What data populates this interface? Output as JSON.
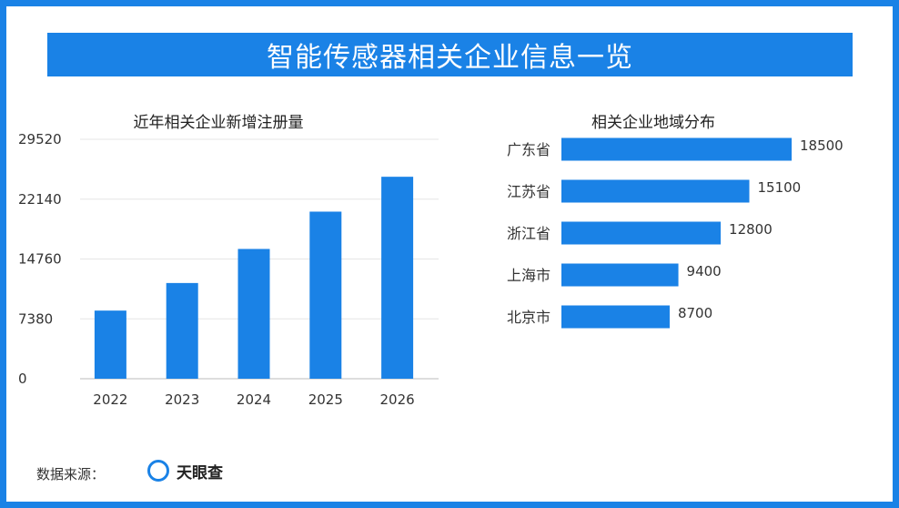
{
  "title": "智能传感器相关企业信息一览",
  "colors": {
    "accent": "#1a82e6",
    "bar": "#1a82e6",
    "text": "#333333",
    "grid": "#e6e6e6"
  },
  "chart_data": [
    {
      "type": "bar",
      "title": "近年相关企业新增注册量",
      "categories": [
        "2022",
        "2023",
        "2024",
        "2025",
        "2026"
      ],
      "values": [
        8400,
        11800,
        16000,
        20600,
        24900
      ],
      "yticks": [
        0,
        7380,
        14760,
        22140,
        29520
      ],
      "ylim": [
        0,
        29520
      ],
      "grid": true
    },
    {
      "type": "bar",
      "orientation": "horizontal",
      "title": "相关企业地域分布",
      "categories": [
        "广东省",
        "江苏省",
        "浙江省",
        "上海市",
        "北京市"
      ],
      "values": [
        18500,
        15100,
        12800,
        9400,
        8700
      ]
    }
  ],
  "footer": {
    "source_label": "数据来源：",
    "source_name": "天眼查",
    "source_icon": "circle-logo-icon"
  }
}
